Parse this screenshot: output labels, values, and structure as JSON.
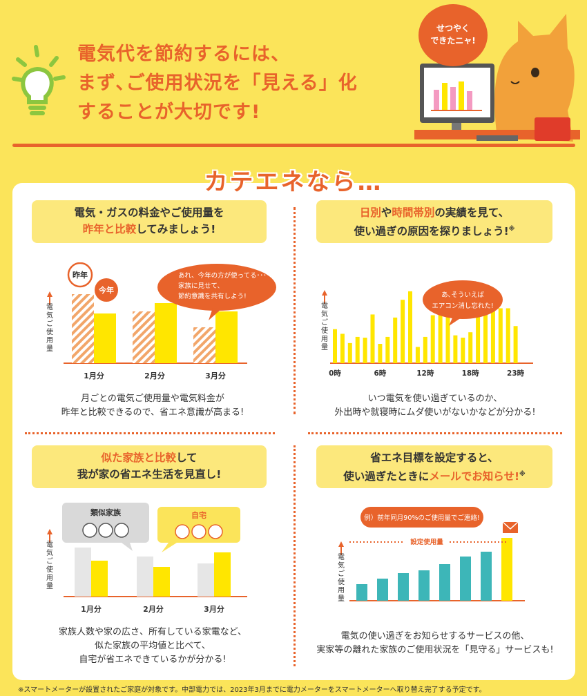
{
  "headline": {
    "line1": "電気代を節約するには、",
    "line2": "まず､ご使用状況を「見える」化",
    "line3": "することが大切です!"
  },
  "cat_bubble": {
    "line1": "せつやく",
    "line2": "できたニャ!"
  },
  "kateene_title": "カテエネなら…",
  "panel1": {
    "head_pre": "電気・ガスの料金やご使用量を",
    "head_em": "昨年と比較",
    "head_post": "してみましょう!",
    "tag_lastyear": "昨年",
    "tag_thisyear": "今年",
    "speech1": "あれ、今年の方が使ってる･･･",
    "speech2": "家族に見せて、",
    "speech3": "節約意識を共有しよう!",
    "desc1": "月ごとの電気ご使用量や電気料金が",
    "desc2": "昨年と比較できるので、省エネ意識が高まる!"
  },
  "panel2": {
    "head_em1": "日別",
    "head_mid": "や",
    "head_em2": "時間帯別",
    "head_post1": "の実績を見て、",
    "head_line2": "使い過ぎの原因を探りましょう!",
    "note_mark": "※",
    "speech1": "あ､そういえば",
    "speech2": "エアコン消し忘れた!",
    "desc1": "いつ電気を使い過ぎているのか、",
    "desc2": "外出時や就寝時にムダ使いがないかなどが分かる!"
  },
  "panel3": {
    "head_em": "似た家族と比較",
    "head_post": "して",
    "head_line2": "我が家の省エネ生活を見直し!",
    "group_similar": "類似家族",
    "group_mine": "自宅",
    "desc1": "家族人数や家の広さ、所有している家電など、",
    "desc2": "似た家族の平均値と比べて、",
    "desc3": "自宅が省エネできているかが分かる!"
  },
  "panel4": {
    "head_line1": "省エネ目標を設定すると、",
    "head_pre": "使い過ぎたときに",
    "head_em": "メールでお知らせ!",
    "note_mark": "※",
    "speech": "例）前年同月90%のご使用量でご連絡!",
    "target_label": "設定使用量",
    "desc1": "電気の使い過ぎをお知らせするサービスの他、",
    "desc2": "実家等の離れた家族のご使用状況を「見守る」サービスも!"
  },
  "axis_ylabel": "電気ご使用量",
  "footer": "※スマートメーターが設置されたご家庭が対象です。中部電力では、2023年3月までに電力メーターをスマートメーターへ取り替え完了する予定です。",
  "colors": {
    "orange": "#e8632b",
    "yellow": "#ffe600",
    "teal": "#3db6b8",
    "gray": "#e6e6e6",
    "pale": "#fbe45a"
  },
  "chart_data": [
    {
      "type": "bar",
      "categories": [
        "1月分",
        "2月分",
        "3月分"
      ],
      "series": [
        {
          "name": "昨年",
          "values": [
            100,
            75,
            52
          ]
        },
        {
          "name": "今年",
          "values": [
            72,
            87,
            75
          ]
        }
      ],
      "ylabel": "電気ご使用量"
    },
    {
      "type": "bar",
      "x_ticks": [
        "0時",
        "6時",
        "12時",
        "18時",
        "23時"
      ],
      "values": [
        44,
        38,
        26,
        34,
        33,
        63,
        25,
        34,
        59,
        82,
        93,
        21,
        34,
        62,
        93,
        63,
        36,
        33,
        40,
        64,
        72,
        77,
        71,
        71,
        48
      ],
      "ylabel": "電気ご使用量"
    },
    {
      "type": "bar",
      "categories": [
        "1月分",
        "2月分",
        "3月分"
      ],
      "series": [
        {
          "name": "類似家族",
          "values": [
            71,
            58,
            48
          ]
        },
        {
          "name": "自宅",
          "values": [
            52,
            43,
            64
          ]
        }
      ],
      "ylabel": "電気ご使用量"
    },
    {
      "type": "bar",
      "values": [
        24,
        32,
        40,
        44,
        53,
        64,
        71,
        91
      ],
      "threshold": 85,
      "threshold_label": "設定使用量",
      "ylabel": "電気ご使用量"
    }
  ]
}
